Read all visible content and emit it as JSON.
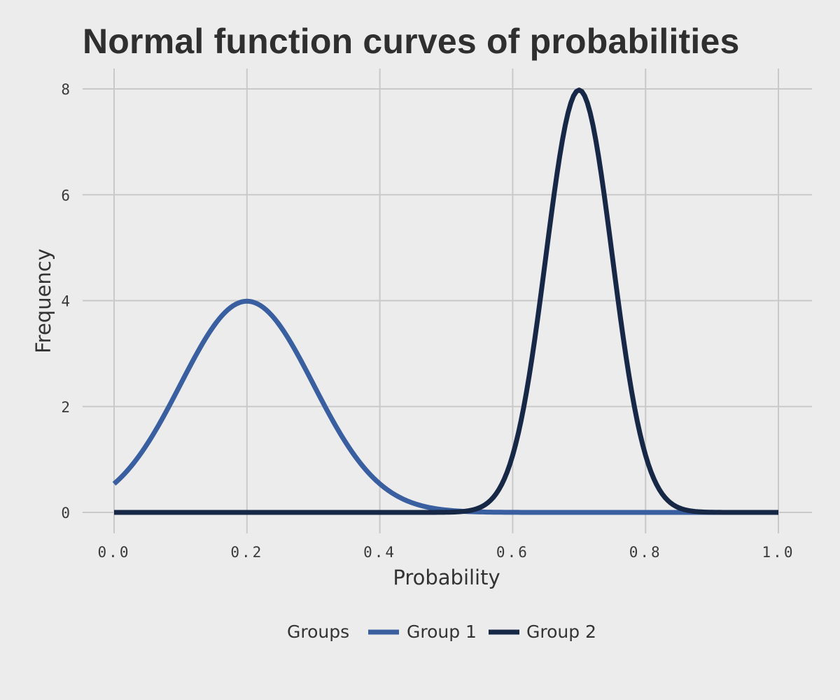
{
  "chart_data": {
    "type": "line",
    "title": "Normal function curves of probabilities",
    "xlabel": "Probability",
    "ylabel": "Frequency",
    "xlim": [
      0,
      1
    ],
    "ylim": [
      0,
      8
    ],
    "x_ticks": [
      "0.0",
      "0.2",
      "0.4",
      "0.6",
      "0.8",
      "1.0"
    ],
    "y_ticks": [
      "0",
      "2",
      "4",
      "6",
      "8"
    ],
    "grid": true,
    "legend": {
      "title": "Groups",
      "position": "bottom"
    },
    "series": [
      {
        "name": "Group 1",
        "color": "#3a5fa0",
        "distribution": "normal",
        "mean": 0.2,
        "sd": 0.1,
        "x": [
          0.0,
          0.05,
          0.1,
          0.15,
          0.2,
          0.25,
          0.3,
          0.35,
          0.4,
          0.45,
          0.5,
          0.6,
          0.7,
          0.8,
          1.0
        ],
        "values": [
          0.54,
          1.3,
          2.42,
          3.52,
          3.99,
          3.52,
          2.42,
          1.3,
          0.54,
          0.18,
          0.04,
          0.0,
          0.0,
          0.0,
          0.0
        ]
      },
      {
        "name": "Group 2",
        "color": "#172746",
        "distribution": "normal",
        "mean": 0.7,
        "sd": 0.05,
        "x": [
          0.0,
          0.5,
          0.55,
          0.6,
          0.65,
          0.7,
          0.75,
          0.8,
          0.85,
          0.9,
          1.0
        ],
        "values": [
          0.0,
          0.0,
          0.09,
          1.08,
          4.84,
          7.98,
          4.84,
          1.08,
          0.09,
          0.0,
          0.0
        ]
      }
    ]
  }
}
